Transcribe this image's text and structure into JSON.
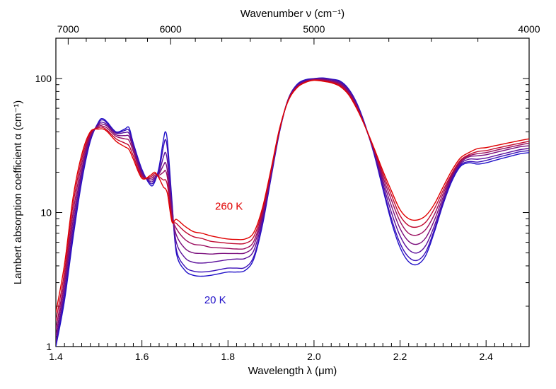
{
  "chart_data": {
    "type": "line",
    "xlabel": "Wavelength λ (μm)",
    "ylabel": "Lambert absorption coefficient α (cm⁻¹)",
    "top_axis_label": "Wavenumber ν (cm⁻¹)",
    "xlim": [
      1.4,
      2.5
    ],
    "ylim": [
      1,
      200
    ],
    "yscale": "log",
    "x_ticks": [
      "1.4",
      "1.6",
      "1.8",
      "2.0",
      "2.2",
      "2.4"
    ],
    "y_ticks": [
      "1",
      "10",
      "100"
    ],
    "top_ticks": [
      "7000",
      "6000",
      "5000",
      "4000"
    ],
    "grid": false,
    "annotations": [
      {
        "text": "260 K",
        "x": 1.77,
        "y": 10.5,
        "color": "#e00000"
      },
      {
        "text": "20 K",
        "x": 1.745,
        "y": 2.1,
        "color": "#2010c8"
      }
    ],
    "x": [
      1.4,
      1.42,
      1.44,
      1.46,
      1.48,
      1.5,
      1.51,
      1.52,
      1.54,
      1.56,
      1.57,
      1.58,
      1.6,
      1.62,
      1.63,
      1.64,
      1.65,
      1.655,
      1.66,
      1.67,
      1.68,
      1.7,
      1.72,
      1.74,
      1.76,
      1.78,
      1.8,
      1.82,
      1.84,
      1.86,
      1.88,
      1.9,
      1.92,
      1.94,
      1.96,
      1.98,
      2.0,
      2.02,
      2.04,
      2.06,
      2.08,
      2.1,
      2.12,
      2.14,
      2.16,
      2.18,
      2.2,
      2.22,
      2.24,
      2.26,
      2.28,
      2.3,
      2.32,
      2.34,
      2.36,
      2.38,
      2.4,
      2.42,
      2.44,
      2.46,
      2.48,
      2.5
    ],
    "series": [
      {
        "color": "#2010c8",
        "values": [
          1.0,
          2.2,
          6.5,
          17,
          34,
          48,
          50,
          47,
          40,
          42,
          43,
          33,
          21,
          16,
          17,
          22,
          35,
          40,
          32,
          12,
          5.0,
          3.7,
          3.4,
          3.35,
          3.4,
          3.5,
          3.6,
          3.6,
          3.7,
          4.5,
          8.0,
          18,
          40,
          70,
          90,
          98,
          100,
          101,
          99,
          96,
          84,
          65,
          44,
          27,
          15,
          8.5,
          5.5,
          4.3,
          4.1,
          4.8,
          7.2,
          11.5,
          17,
          22,
          23.5,
          23,
          23.5,
          24.5,
          25.5,
          26.5,
          27.5,
          28
        ]
      },
      {
        "color": "#3a0fb8",
        "values": [
          1.05,
          2.4,
          7.0,
          18,
          35,
          47,
          49,
          46,
          39.5,
          41,
          41,
          32,
          20.5,
          16.5,
          17.5,
          21,
          31,
          35,
          28,
          11.5,
          5.3,
          3.95,
          3.65,
          3.6,
          3.65,
          3.75,
          3.85,
          3.85,
          3.9,
          4.7,
          8.3,
          18.5,
          40.5,
          70,
          89,
          97,
          99.5,
          100.5,
          98.5,
          95,
          83,
          64,
          43.5,
          27.5,
          15.5,
          9.0,
          5.9,
          4.65,
          4.4,
          5.1,
          7.5,
          11.8,
          17.5,
          22.5,
          24,
          23.8,
          24.5,
          25.5,
          26.5,
          27.5,
          28.5,
          29
        ]
      },
      {
        "color": "#5a0e9a",
        "values": [
          1.1,
          2.6,
          7.8,
          19.5,
          36,
          46,
          47,
          45,
          39,
          39.5,
          39,
          31,
          20,
          17,
          18,
          20,
          26,
          28,
          23,
          10.8,
          6.0,
          4.6,
          4.25,
          4.2,
          4.25,
          4.35,
          4.45,
          4.5,
          4.55,
          5.2,
          8.8,
          19,
          41,
          70,
          88,
          96,
          99,
          99.5,
          97.5,
          93.5,
          81.5,
          63,
          43,
          28,
          16.5,
          10,
          6.7,
          5.3,
          5.0,
          5.7,
          8.0,
          12.3,
          18,
          23,
          25,
          25,
          25.5,
          26.5,
          27.5,
          28.5,
          29.5,
          30
        ]
      },
      {
        "color": "#7a0d7c",
        "values": [
          1.2,
          2.9,
          8.8,
          21,
          37,
          45,
          45.5,
          44,
          38,
          37.5,
          37,
          30,
          19.5,
          17.5,
          18.5,
          19.5,
          22.5,
          23.5,
          19.5,
          10.0,
          6.8,
          5.4,
          5.0,
          4.95,
          4.9,
          4.95,
          4.95,
          4.95,
          5.0,
          5.7,
          9.3,
          19.5,
          41,
          69.5,
          87,
          95,
          98.5,
          98.5,
          96,
          92,
          80,
          62,
          43,
          28.5,
          17.5,
          11.2,
          7.6,
          6.1,
          5.8,
          6.5,
          8.8,
          13,
          18.5,
          23.5,
          26,
          26.5,
          27,
          28,
          29,
          30,
          31,
          31.5
        ]
      },
      {
        "color": "#9a0c5e",
        "values": [
          1.35,
          3.2,
          10,
          23,
          38,
          44,
          44,
          42.5,
          37,
          35.5,
          34.5,
          28.5,
          19,
          18,
          19,
          19,
          20,
          20.5,
          17.5,
          9.4,
          7.6,
          6.3,
          5.8,
          5.7,
          5.5,
          5.45,
          5.4,
          5.35,
          5.4,
          6.1,
          9.8,
          20,
          41.5,
          69,
          86,
          94.5,
          98,
          97.5,
          95,
          90.5,
          78.5,
          61,
          43,
          29,
          18.5,
          12.4,
          8.6,
          7.0,
          6.8,
          7.5,
          9.7,
          13.8,
          19,
          24,
          26.5,
          27.5,
          28,
          29,
          30,
          31,
          32,
          33
        ]
      },
      {
        "color": "#c00a30",
        "values": [
          1.55,
          3.6,
          11.5,
          25,
          39,
          43,
          43,
          41,
          35.5,
          33,
          31.5,
          26.5,
          18.5,
          18.5,
          19.5,
          18.5,
          17.5,
          17.5,
          15.5,
          8.9,
          8.3,
          7.2,
          6.6,
          6.4,
          6.1,
          6.0,
          5.9,
          5.85,
          5.9,
          6.6,
          10.3,
          20.5,
          42,
          68.5,
          85.5,
          94,
          97.5,
          96.5,
          94,
          89,
          77,
          60,
          43,
          29.5,
          19.5,
          13.5,
          9.5,
          8.0,
          7.8,
          8.5,
          10.7,
          14.6,
          19.5,
          24.5,
          27,
          28.5,
          29,
          30,
          31,
          32,
          33,
          34
        ]
      },
      {
        "color": "#e00000",
        "values": [
          1.8,
          4.1,
          13,
          27,
          40,
          42,
          42,
          40,
          34,
          31,
          29.5,
          25,
          18,
          19,
          20,
          18,
          15.5,
          15,
          13.5,
          8.5,
          8.9,
          7.9,
          7.2,
          7.0,
          6.7,
          6.5,
          6.35,
          6.3,
          6.35,
          7.1,
          10.8,
          21,
          42.5,
          68,
          85,
          93.5,
          97,
          95.5,
          93,
          87.5,
          76,
          59,
          43,
          30,
          20.5,
          14.5,
          10.5,
          9.0,
          8.8,
          9.5,
          11.6,
          15.5,
          20.5,
          25.5,
          28,
          30,
          30.5,
          31.5,
          32.5,
          33.5,
          34.5,
          35.5
        ]
      }
    ]
  }
}
